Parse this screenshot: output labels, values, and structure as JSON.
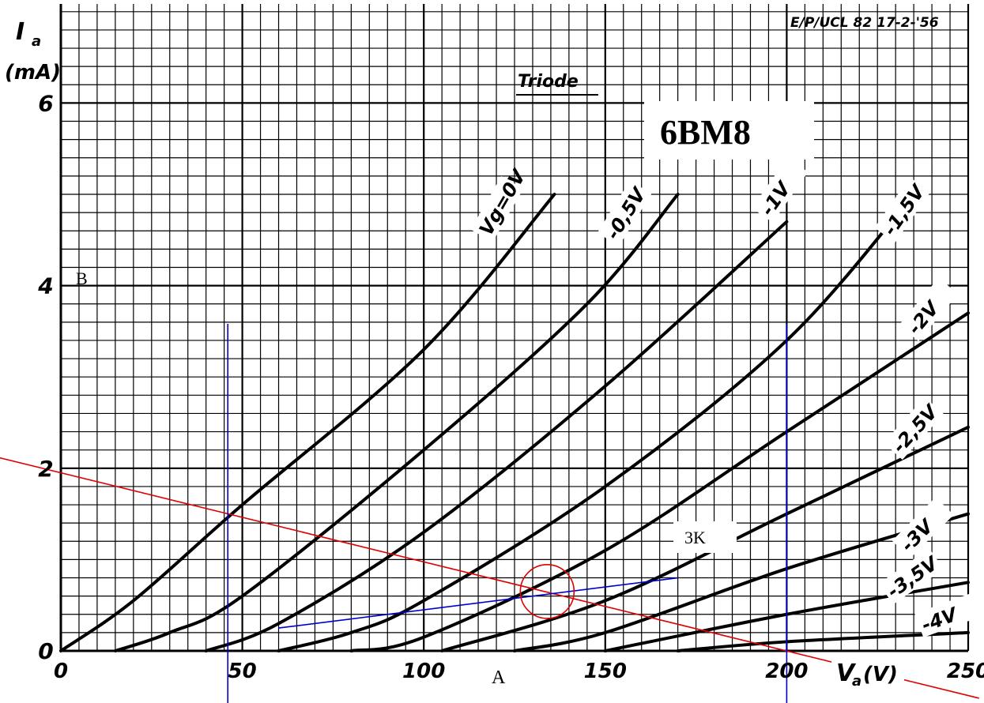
{
  "chart_data": {
    "type": "line",
    "ref_code": "E/P/UCL 82 17-2-'56",
    "subtitle": "Triode",
    "tube_label": "6BM8",
    "ylabel": "I",
    "ylabel_sub": "a",
    "yunit": "(mA)",
    "xlabel": "V",
    "xlabel_sub": "a",
    "xunit": "(V)",
    "xlim": [
      0,
      250
    ],
    "ylim": [
      0,
      7
    ],
    "x_ticks": [
      "0",
      "50",
      "100",
      "150",
      "200",
      "250"
    ],
    "y_ticks": [
      "0",
      "2",
      "4",
      "6"
    ],
    "grid": true,
    "series": [
      {
        "name": "Vg=0V",
        "points": [
          [
            0,
            0
          ],
          [
            20,
            0.55
          ],
          [
            50,
            1.6
          ],
          [
            100,
            3.3
          ],
          [
            136,
            5.0
          ]
        ]
      },
      {
        "name": "-0,5V",
        "points": [
          [
            15,
            0
          ],
          [
            30,
            0.2
          ],
          [
            50,
            0.6
          ],
          [
            100,
            2.2
          ],
          [
            145,
            3.8
          ],
          [
            170,
            5.0
          ]
        ]
      },
      {
        "name": "-1V",
        "points": [
          [
            40,
            0
          ],
          [
            60,
            0.3
          ],
          [
            100,
            1.3
          ],
          [
            150,
            2.9
          ],
          [
            200,
            4.7
          ]
        ]
      },
      {
        "name": "-1,5V",
        "points": [
          [
            60,
            0
          ],
          [
            80,
            0.2
          ],
          [
            100,
            0.55
          ],
          [
            150,
            1.8
          ],
          [
            200,
            3.4
          ],
          [
            235,
            5.0
          ]
        ]
      },
      {
        "name": "-2V",
        "points": [
          [
            80,
            0
          ],
          [
            100,
            0.15
          ],
          [
            150,
            1.1
          ],
          [
            200,
            2.4
          ],
          [
            250,
            3.7
          ]
        ]
      },
      {
        "name": "-2,5V",
        "points": [
          [
            105,
            0
          ],
          [
            150,
            0.55
          ],
          [
            200,
            1.5
          ],
          [
            250,
            2.45
          ]
        ]
      },
      {
        "name": "-3V",
        "points": [
          [
            125,
            0
          ],
          [
            150,
            0.2
          ],
          [
            200,
            0.9
          ],
          [
            250,
            1.5
          ]
        ]
      },
      {
        "name": "-3,5V",
        "points": [
          [
            150,
            0
          ],
          [
            200,
            0.4
          ],
          [
            250,
            0.75
          ]
        ]
      },
      {
        "name": "-4V",
        "points": [
          [
            170,
            0
          ],
          [
            200,
            0.1
          ],
          [
            250,
            0.2
          ]
        ]
      }
    ],
    "annotations": {
      "load_line": {
        "label": "3K",
        "points": [
          [
            0,
            1.95
          ],
          [
            205,
            -0.05
          ]
        ]
      },
      "operating_point": {
        "x": 134,
        "y": 0.65
      },
      "tangent": {
        "points": [
          [
            60,
            0.25
          ],
          [
            170,
            0.8
          ]
        ]
      },
      "vertical_lines": [
        46,
        200
      ],
      "point_a_label": "A",
      "point_b_label": "B"
    }
  }
}
